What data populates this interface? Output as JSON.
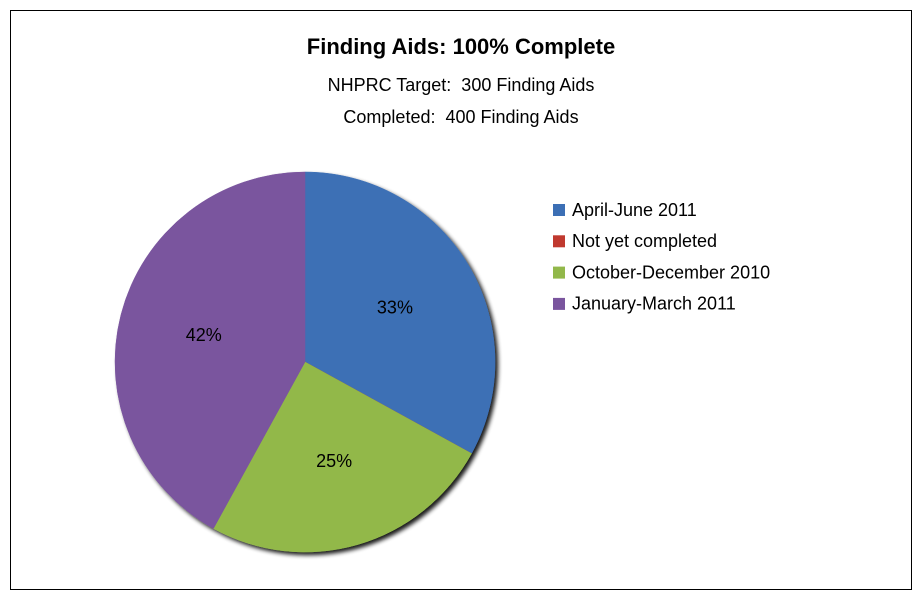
{
  "chart_data": {
    "type": "pie",
    "title": "Finding Aids: 100% Complete",
    "subtitle": [
      "NHPRC Target:  300 Finding Aids",
      "Completed:  400 Finding Aids"
    ],
    "categories": [
      "April-June 2011",
      "Not yet completed",
      "October-December 2010",
      "January-March 2011"
    ],
    "values": [
      33,
      0,
      25,
      42
    ],
    "value_labels": [
      "33%",
      null,
      "25%",
      "42%"
    ],
    "colors": [
      "#3c6fb5",
      "#c0392f",
      "#92b84a",
      "#7a559e"
    ],
    "legend": "right"
  }
}
